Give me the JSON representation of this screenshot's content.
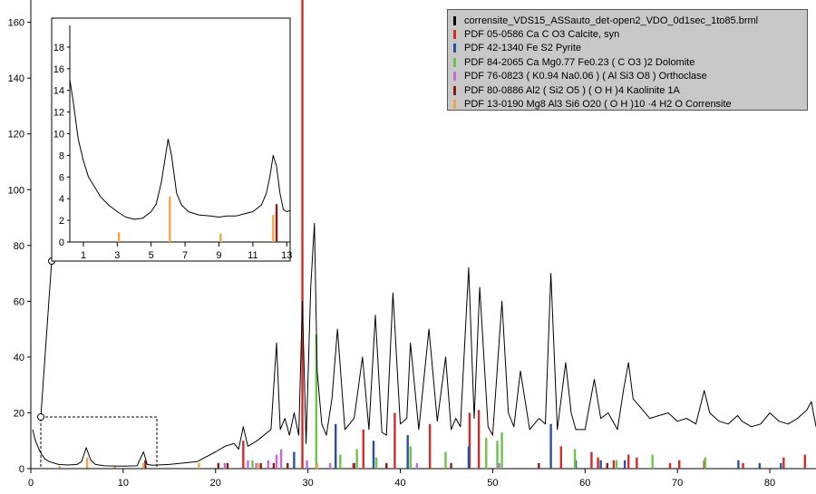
{
  "chart_data": {
    "type": "line",
    "title": "",
    "xlabel": "",
    "ylabel": "",
    "xlim": [
      0,
      85
    ],
    "ylim": [
      0,
      168
    ],
    "x_ticks": [
      "0",
      "10",
      "20",
      "30",
      "40",
      "50",
      "60",
      "70",
      "80"
    ],
    "y_ticks": [
      "0",
      "20",
      "40",
      "60",
      "80",
      "100",
      "120",
      "140",
      "160"
    ],
    "series": [
      {
        "name": "corrensite_VDS15_ASSauto_det-open2_VDO_0d1sec_1to85.brml",
        "color": "#000000",
        "x": [
          0.2,
          0.5,
          1.0,
          1.5,
          2.0,
          3.0,
          4.0,
          5.0,
          5.5,
          6.0,
          6.5,
          7.0,
          8.0,
          10.0,
          11.5,
          12.2,
          12.6,
          13.2,
          15.0,
          18.0,
          20.0,
          21.0,
          22.0,
          22.5,
          23.0,
          23.5,
          24.5,
          26.0,
          26.6,
          27.0,
          27.5,
          28.0,
          28.5,
          29.0,
          29.4,
          29.8,
          30.3,
          30.7,
          31.0,
          31.5,
          32.0,
          32.6,
          33.2,
          34.0,
          35.0,
          35.9,
          36.6,
          37.3,
          38.0,
          38.5,
          39.2,
          40.0,
          40.7,
          41.1,
          42.0,
          43.1,
          44.0,
          44.9,
          45.5,
          46.0,
          46.5,
          47.4,
          48.0,
          48.6,
          49.5,
          50.0,
          51.0,
          51.7,
          52.3,
          53.0,
          54.0,
          55.0,
          55.7,
          56.3,
          57.0,
          57.9,
          58.5,
          59.0,
          60.0,
          61.0,
          61.7,
          62.5,
          63.5,
          64.2,
          64.7,
          65.2,
          66.0,
          67.0,
          68.0,
          69.0,
          70.0,
          71.0,
          72.0,
          72.9,
          73.5,
          74.5,
          75.5,
          76.5,
          77.0,
          78.0,
          79.0,
          80.0,
          81.0,
          82.0,
          83.0,
          84.0,
          84.5,
          85.0
        ],
        "y": [
          14,
          10,
          6,
          3.5,
          2.5,
          1.5,
          1.3,
          1.5,
          2.5,
          7.5,
          3,
          1.5,
          1,
          0.9,
          1,
          6,
          1.5,
          1.2,
          1.5,
          2.5,
          6,
          8,
          9,
          7,
          15,
          8,
          10,
          14,
          45,
          14,
          18,
          12,
          20,
          12,
          60,
          9,
          65,
          88,
          35,
          16,
          12,
          25,
          50,
          14,
          18,
          40,
          14,
          55,
          13,
          12,
          63,
          16,
          18,
          45,
          14,
          50,
          17,
          40,
          14,
          18,
          15,
          72,
          18,
          65,
          15,
          12,
          60,
          20,
          15,
          35,
          14,
          18,
          16,
          70,
          14,
          38,
          20,
          14,
          14,
          32,
          18,
          20,
          14,
          29,
          38,
          25,
          22,
          18,
          19,
          20,
          17,
          18,
          16,
          28,
          20,
          17,
          16,
          19,
          17,
          15,
          16,
          20,
          17,
          16,
          18,
          21,
          24,
          15
        ]
      }
    ],
    "reference_patterns": [
      {
        "name": "PDF 05-0586 Ca C O3 Calcite, syn",
        "color": "#d42a2a",
        "x": [
          23.0,
          29.4,
          36.0,
          39.4,
          43.2,
          47.5,
          48.5,
          57.4,
          60.7,
          61.4,
          63.1,
          64.7,
          65.6,
          69.2,
          70.2,
          72.9,
          77.1,
          81.5,
          83.8
        ],
        "y": [
          10,
          168,
          14,
          20,
          16,
          20,
          21,
          8,
          6,
          4,
          3,
          5,
          4,
          2,
          3,
          3,
          2,
          4,
          5
        ]
      },
      {
        "name": "PDF 42-1340 Fe S2 Pyrite",
        "color": "#2d4fa1",
        "x": [
          28.5,
          33.0,
          37.1,
          40.8,
          47.4,
          56.3,
          59.0,
          61.7,
          64.3,
          76.6,
          78.9,
          81.2
        ],
        "y": [
          6,
          16,
          10,
          12,
          8,
          16,
          3,
          3,
          3,
          3,
          2,
          2
        ]
      },
      {
        "name": "PDF 84-2065 Ca Mg0.77 Fe0.23 ( C O3 )2 Dolomite",
        "color": "#6cc34a",
        "x": [
          24.0,
          30.9,
          33.5,
          35.3,
          37.4,
          41.1,
          44.9,
          49.3,
          50.5,
          51.0,
          58.9,
          63.4,
          67.3,
          73.0
        ],
        "y": [
          3,
          48,
          5,
          7,
          4,
          8,
          6,
          11,
          10,
          13,
          7,
          3,
          5,
          4
        ]
      },
      {
        "name": "PDF 76-0823 ( K0.94 Na0.06 ) ( Al Si3 O8 ) Orthoclase",
        "color": "#c46ad6",
        "x": [
          21.0,
          23.5,
          24.4,
          25.7,
          26.6,
          27.1,
          29.9,
          32.4,
          34.9,
          41.8,
          50.7
        ],
        "y": [
          2,
          3,
          2,
          3,
          5,
          7,
          3,
          2,
          2,
          2,
          2
        ]
      },
      {
        "name": "PDF 80-0886 Al2 ( Si2 O5 ) ( O H )4 Kaolinite 1A",
        "color": "#8b1a1a",
        "x": [
          12.4,
          20.3,
          21.3,
          24.9,
          26.3,
          27.8,
          35.0,
          38.5,
          45.5,
          55.0,
          62.4
        ],
        "y": [
          3,
          2,
          2,
          2,
          2,
          2,
          2,
          2,
          2,
          2,
          2
        ]
      },
      {
        "name": "PDF 13-0190 Mg8 Al3 Si6 O20 ( O H )10 ·4 H2 O Corrensite",
        "color": "#f2a64a",
        "x": [
          3.1,
          6.1,
          9.1,
          12.2,
          18.2,
          24.6,
          31.0
        ],
        "y": [
          1,
          4,
          1,
          2,
          2,
          2,
          2
        ]
      }
    ],
    "inset": {
      "xlim": [
        0.2,
        13.2
      ],
      "ylim": [
        0,
        20
      ],
      "x_ticks": [
        "1",
        "3",
        "5",
        "7",
        "9",
        "11",
        "13"
      ],
      "y_ticks": [
        "0",
        "2",
        "4",
        "6",
        "8",
        "10",
        "12",
        "14",
        "16",
        "18"
      ],
      "x": [
        0.2,
        0.4,
        0.7,
        1.0,
        1.3,
        1.7,
        2.0,
        2.5,
        3.0,
        3.5,
        4.0,
        4.5,
        5.0,
        5.3,
        5.6,
        5.8,
        6.0,
        6.2,
        6.5,
        6.8,
        7.2,
        7.8,
        8.5,
        9.0,
        9.5,
        10.0,
        10.5,
        11.0,
        11.5,
        11.8,
        12.0,
        12.2,
        12.4,
        12.6,
        12.8,
        13.0,
        13.2
      ],
      "y": [
        15,
        13,
        9.5,
        7.5,
        6,
        5,
        4.2,
        3.4,
        2.8,
        2.3,
        2.1,
        2.2,
        2.8,
        3.5,
        5.5,
        7.5,
        9.5,
        8,
        4.5,
        3.4,
        2.8,
        2.5,
        2.4,
        2.3,
        2.4,
        2.4,
        2.6,
        2.8,
        3.4,
        4.5,
        6,
        8,
        7,
        4.5,
        3,
        2.8,
        2.9
      ],
      "patterns": [
        {
          "color": "#f2a64a",
          "x": [
            3.1,
            6.1,
            9.1,
            12.2
          ],
          "y": [
            0.9,
            4.2,
            0.8,
            2.5
          ]
        },
        {
          "color": "#8b1a1a",
          "x": [
            12.4
          ],
          "y": [
            3.5
          ]
        }
      ]
    }
  }
}
